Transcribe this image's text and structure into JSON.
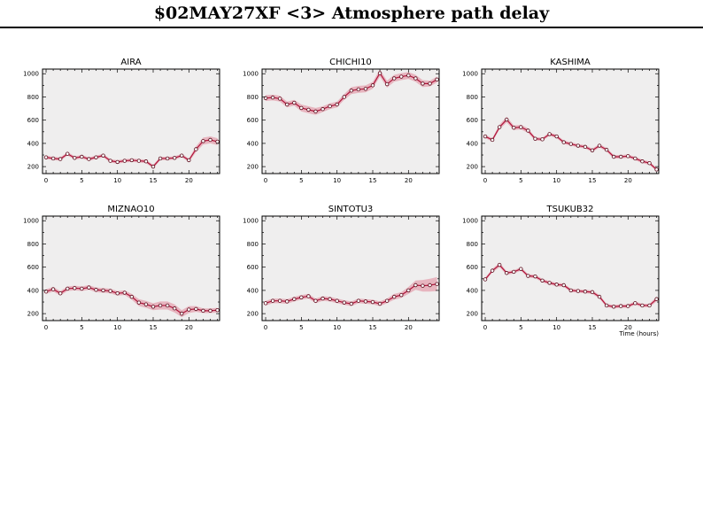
{
  "header": {
    "title": "$02MAY27XF <3>  Atmosphere path delay"
  },
  "colors": {
    "frame": "#000000",
    "panel_bg": "#efeeee",
    "band": "#e7b5bf",
    "line": "#b0143a",
    "marker_edge": "#5a0a1a",
    "marker_fill": "#ffffff"
  },
  "chart_data": [
    {
      "type": "line",
      "title": "AIRA",
      "xlabel": "",
      "ylabel": "",
      "xlim": [
        -0.5,
        24.3
      ],
      "ylim": [
        140,
        1040
      ],
      "xticks": [
        0,
        5,
        10,
        15,
        20
      ],
      "yticks": [
        200,
        400,
        600,
        800,
        1000
      ],
      "x": [
        0,
        1,
        2,
        3,
        4,
        5,
        6,
        7,
        8,
        9,
        10,
        11,
        12,
        13,
        14,
        15,
        16,
        17,
        18,
        19,
        20,
        21,
        22,
        23,
        24
      ],
      "values": [
        280,
        270,
        265,
        310,
        275,
        285,
        265,
        280,
        295,
        250,
        240,
        250,
        255,
        250,
        245,
        200,
        270,
        270,
        275,
        295,
        255,
        350,
        420,
        430,
        415
      ],
      "band": [
        15,
        15,
        15,
        15,
        15,
        15,
        15,
        15,
        15,
        15,
        15,
        15,
        15,
        15,
        15,
        15,
        15,
        15,
        15,
        15,
        15,
        25,
        30,
        30,
        30
      ]
    },
    {
      "type": "line",
      "title": "CHICHI10",
      "xlabel": "",
      "ylabel": "",
      "xlim": [
        -0.5,
        24.3
      ],
      "ylim": [
        140,
        1040
      ],
      "xticks": [
        0,
        5,
        10,
        15,
        20
      ],
      "yticks": [
        200,
        400,
        600,
        800,
        1000
      ],
      "x": [
        0,
        1,
        2,
        3,
        4,
        5,
        6,
        7,
        8,
        9,
        10,
        11,
        12,
        13,
        14,
        15,
        16,
        17,
        18,
        19,
        20,
        21,
        22,
        23,
        24
      ],
      "values": [
        790,
        795,
        785,
        735,
        750,
        705,
        690,
        675,
        695,
        720,
        735,
        800,
        855,
        865,
        870,
        900,
        1005,
        910,
        960,
        975,
        985,
        960,
        915,
        915,
        950
      ],
      "band": [
        25,
        25,
        25,
        25,
        25,
        30,
        30,
        30,
        25,
        25,
        25,
        25,
        30,
        30,
        30,
        30,
        30,
        30,
        30,
        30,
        30,
        30,
        30,
        25,
        25
      ]
    },
    {
      "type": "line",
      "title": "KASHIMA",
      "xlabel": "",
      "ylabel": "",
      "xlim": [
        -0.5,
        24.3
      ],
      "ylim": [
        140,
        1040
      ],
      "xticks": [
        0,
        5,
        10,
        15,
        20
      ],
      "yticks": [
        200,
        400,
        600,
        800,
        1000
      ],
      "x": [
        0,
        1,
        2,
        3,
        4,
        5,
        6,
        7,
        8,
        9,
        10,
        11,
        12,
        13,
        14,
        15,
        16,
        17,
        18,
        19,
        20,
        21,
        22,
        23,
        24
      ],
      "values": [
        460,
        430,
        540,
        605,
        535,
        540,
        510,
        440,
        435,
        480,
        460,
        410,
        395,
        380,
        370,
        340,
        380,
        345,
        285,
        285,
        290,
        270,
        245,
        230,
        175
      ],
      "band": [
        15,
        15,
        20,
        25,
        20,
        20,
        20,
        15,
        15,
        15,
        15,
        15,
        15,
        15,
        15,
        15,
        15,
        15,
        15,
        15,
        15,
        15,
        15,
        15,
        15
      ]
    },
    {
      "type": "line",
      "title": "MIZNAO10",
      "xlabel": "",
      "ylabel": "",
      "xlim": [
        -0.5,
        24.3
      ],
      "ylim": [
        140,
        1040
      ],
      "xticks": [
        0,
        5,
        10,
        15,
        20
      ],
      "yticks": [
        200,
        400,
        600,
        800,
        1000
      ],
      "x": [
        0,
        1,
        2,
        3,
        4,
        5,
        6,
        7,
        8,
        9,
        10,
        11,
        12,
        13,
        14,
        15,
        16,
        17,
        18,
        19,
        20,
        21,
        22,
        23,
        24
      ],
      "values": [
        390,
        410,
        375,
        415,
        420,
        415,
        425,
        405,
        400,
        395,
        375,
        380,
        345,
        295,
        280,
        260,
        270,
        270,
        245,
        200,
        235,
        240,
        225,
        225,
        230
      ],
      "band": [
        20,
        20,
        20,
        20,
        20,
        20,
        20,
        20,
        20,
        20,
        20,
        20,
        25,
        30,
        30,
        30,
        35,
        35,
        35,
        30,
        30,
        25,
        20,
        20,
        20
      ]
    },
    {
      "type": "line",
      "title": "SINTOTU3",
      "xlabel": "",
      "ylabel": "",
      "xlim": [
        -0.5,
        24.3
      ],
      "ylim": [
        140,
        1040
      ],
      "xticks": [
        0,
        5,
        10,
        15,
        20
      ],
      "yticks": [
        200,
        400,
        600,
        800,
        1000
      ],
      "x": [
        0,
        1,
        2,
        3,
        4,
        5,
        6,
        7,
        8,
        9,
        10,
        11,
        12,
        13,
        14,
        15,
        16,
        17,
        18,
        19,
        20,
        21,
        22,
        23,
        24
      ],
      "values": [
        290,
        310,
        310,
        305,
        325,
        340,
        350,
        310,
        330,
        325,
        310,
        295,
        285,
        310,
        305,
        300,
        285,
        310,
        345,
        360,
        400,
        445,
        440,
        445,
        455
      ],
      "band": [
        20,
        20,
        20,
        20,
        20,
        20,
        20,
        20,
        20,
        20,
        20,
        20,
        20,
        20,
        20,
        20,
        20,
        20,
        25,
        25,
        30,
        40,
        50,
        55,
        60
      ]
    },
    {
      "type": "line",
      "title": "TSUKUB32",
      "xlabel": "Time (hours)",
      "ylabel": "",
      "xlim": [
        -0.5,
        24.3
      ],
      "ylim": [
        140,
        1040
      ],
      "xticks": [
        0,
        5,
        10,
        15,
        20
      ],
      "yticks": [
        200,
        400,
        600,
        800,
        1000
      ],
      "x": [
        0,
        1,
        2,
        3,
        4,
        5,
        6,
        7,
        8,
        9,
        10,
        11,
        12,
        13,
        14,
        15,
        16,
        17,
        18,
        19,
        20,
        21,
        22,
        23,
        24
      ],
      "values": [
        495,
        570,
        620,
        550,
        560,
        585,
        525,
        520,
        485,
        465,
        450,
        445,
        400,
        395,
        390,
        385,
        345,
        270,
        260,
        265,
        265,
        290,
        270,
        270,
        325
      ],
      "band": [
        15,
        15,
        20,
        15,
        15,
        15,
        15,
        15,
        15,
        15,
        15,
        15,
        15,
        15,
        15,
        15,
        15,
        15,
        15,
        15,
        15,
        15,
        15,
        15,
        20
      ]
    }
  ]
}
